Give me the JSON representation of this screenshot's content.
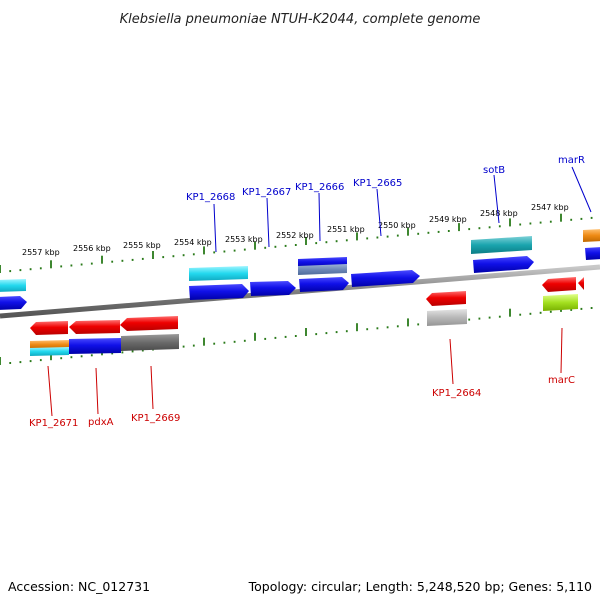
{
  "title": "Klebsiella pneumoniae NTUH-K2044, complete genome",
  "footer": {
    "accession": "Accession: NC_012731",
    "topology": "Topology: circular; Length: 5,248,520 bp; Genes: 5,110"
  },
  "colors": {
    "forward_label": "#0000cc",
    "reverse_label": "#cc0000",
    "tick": "#2a7a1a",
    "backbone": "#7f7f7f"
  },
  "kbp_labels": [
    "2557 kbp",
    "2556 kbp",
    "2555 kbp",
    "2554 kbp",
    "2553 kbp",
    "2552 kbp",
    "2551 kbp",
    "2550 kbp",
    "2549 kbp",
    "2548 kbp",
    "2547 kbp"
  ],
  "forward_labels": [
    "KP1_2668",
    "KP1_2667",
    "KP1_2666",
    "KP1_2665",
    "sotB",
    "marR"
  ],
  "reverse_labels": [
    "KP1_2671",
    "pdxA",
    "KP1_2669",
    "KP1_2664",
    "marC"
  ]
}
